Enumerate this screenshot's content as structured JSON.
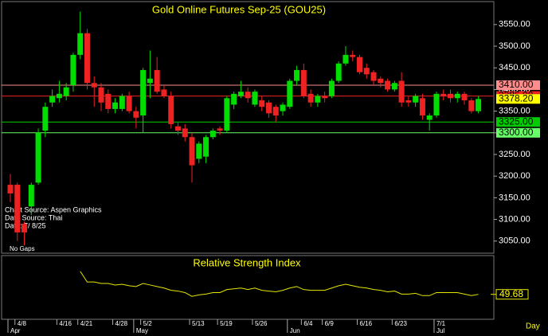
{
  "chart_data": {
    "type": "candlestick",
    "title": "Gold Online Futures Sep-25 (GOU25)",
    "subtitle": "Relative Strength Index",
    "notes": [
      "Chart Source: Aspen Graphics",
      "Data Source: Thai",
      "Date:  7/ 8/25"
    ],
    "footer": "No Gaps",
    "period_label": "Day",
    "categories": [
      null,
      "4/8",
      null,
      null,
      null,
      null,
      null,
      "4/16",
      null,
      null,
      "4/21",
      null,
      null,
      null,
      null,
      "4/28",
      null,
      null,
      null,
      "5/2",
      null,
      null,
      null,
      null,
      null,
      null,
      "5/13",
      null,
      null,
      null,
      "5/19",
      null,
      null,
      null,
      null,
      "5/26",
      null,
      null,
      null,
      null,
      null,
      null,
      "6/4",
      null,
      null,
      "6/9",
      null,
      null,
      null,
      null,
      "6/16",
      null,
      null,
      null,
      null,
      "6/23",
      null,
      null,
      null,
      null,
      null,
      "7/1",
      null,
      null,
      null,
      null,
      null,
      null
    ],
    "months": [
      "Apr",
      null,
      null,
      null,
      null,
      null,
      null,
      null,
      null,
      null,
      null,
      null,
      null,
      null,
      null,
      null,
      null,
      null,
      "May",
      null,
      null,
      null,
      null,
      null,
      null,
      null,
      null,
      null,
      null,
      null,
      null,
      null,
      null,
      null,
      null,
      null,
      null,
      null,
      null,
      null,
      "Jun",
      null,
      null,
      null,
      null,
      null,
      null,
      null,
      null,
      null,
      null,
      null,
      null,
      null,
      null,
      null,
      null,
      null,
      null,
      null,
      null,
      "Jul",
      null,
      null,
      null,
      null,
      null,
      null
    ],
    "open": [
      3180,
      3180,
      3090,
      3130,
      3185,
      3305,
      3370,
      3380,
      3385,
      3410,
      3480,
      3530,
      3415,
      3405,
      3390,
      3355,
      3355,
      3385,
      3350,
      3340,
      3415,
      3445,
      3400,
      3385,
      3315,
      3310,
      3290,
      3240,
      3245,
      3290,
      3310,
      3305,
      3365,
      3385,
      3395,
      3365,
      3375,
      3370,
      3360,
      3350,
      3360,
      3420,
      3445,
      3390,
      3370,
      3385,
      3385,
      3420,
      3460,
      3480,
      3475,
      3450,
      3440,
      3425,
      3420,
      3400,
      3420,
      3375,
      3370,
      3380,
      3330,
      3340,
      3390,
      3390,
      3380,
      3390,
      3375,
      3350
    ],
    "high": [
      3205,
      3185,
      3095,
      3185,
      3310,
      3370,
      3400,
      3420,
      3415,
      3485,
      3580,
      3540,
      3430,
      3415,
      3400,
      3380,
      3390,
      3395,
      3360,
      3450,
      3490,
      3475,
      3410,
      3395,
      3325,
      3320,
      3300,
      3280,
      3295,
      3310,
      3315,
      3385,
      3395,
      3420,
      3405,
      3400,
      3385,
      3375,
      3365,
      3370,
      3425,
      3455,
      3460,
      3400,
      3390,
      3395,
      3425,
      3465,
      3500,
      3490,
      3480,
      3460,
      3445,
      3430,
      3425,
      3420,
      3440,
      3385,
      3390,
      3390,
      3345,
      3395,
      3400,
      3400,
      3395,
      3395,
      3380,
      3385
    ],
    "low": [
      3140,
      3050,
      3040,
      3110,
      3180,
      3290,
      3360,
      3370,
      3375,
      3395,
      3470,
      3400,
      3360,
      3350,
      3345,
      3345,
      3350,
      3345,
      3310,
      3300,
      3380,
      3390,
      3380,
      3310,
      3295,
      3280,
      3185,
      3230,
      3230,
      3285,
      3295,
      3300,
      3355,
      3380,
      3370,
      3360,
      3350,
      3335,
      3325,
      3340,
      3355,
      3410,
      3380,
      3360,
      3360,
      3370,
      3380,
      3415,
      3455,
      3465,
      3435,
      3425,
      3410,
      3405,
      3395,
      3395,
      3360,
      3360,
      3360,
      3330,
      3305,
      3335,
      3375,
      3370,
      3370,
      3365,
      3345,
      3345
    ],
    "close": [
      3160,
      3070,
      3070,
      3180,
      3300,
      3360,
      3385,
      3390,
      3405,
      3480,
      3530,
      3415,
      3405,
      3370,
      3355,
      3370,
      3385,
      3350,
      3335,
      3445,
      3425,
      3395,
      3385,
      3320,
      3305,
      3290,
      3225,
      3275,
      3290,
      3305,
      3305,
      3380,
      3390,
      3395,
      3380,
      3395,
      3360,
      3345,
      3340,
      3365,
      3420,
      3445,
      3385,
      3370,
      3385,
      3380,
      3420,
      3460,
      3480,
      3475,
      3440,
      3435,
      3420,
      3415,
      3400,
      3415,
      3370,
      3370,
      3385,
      3340,
      3340,
      3390,
      3385,
      3380,
      3390,
      3375,
      3350,
      3378.2
    ],
    "last_label": "3378.20",
    "up_color": "#00dd00",
    "down_color": "#ee2222",
    "levels": [
      {
        "value": 3410,
        "label": "3410.00",
        "color": "#ff8c8c"
      },
      {
        "value": 3385,
        "label": "3385.00",
        "color": "#ee2222"
      },
      {
        "value": 3325,
        "label": "3325.00",
        "color": "#00cc00"
      },
      {
        "value": 3300,
        "label": "3300.00",
        "color": "#66ff66"
      }
    ],
    "ylim": [
      3022,
      3603
    ],
    "yticks": [
      {
        "value": 3050,
        "label": "3050.00"
      },
      {
        "value": 3100,
        "label": "3100.00"
      },
      {
        "value": 3150,
        "label": "3150.00"
      },
      {
        "value": 3200,
        "label": "3200.00"
      },
      {
        "value": 3250,
        "label": "3250.00"
      },
      {
        "value": 3300,
        "label": "3300.00"
      },
      {
        "value": 3350,
        "label": "3350.00"
      },
      {
        "value": 3400,
        "label": "3400.00"
      },
      {
        "value": 3450,
        "label": "3450.00"
      },
      {
        "value": 3500,
        "label": "3500.00"
      },
      {
        "value": 3550,
        "label": "3550.00"
      }
    ],
    "rsi": {
      "name": "Relative Strength Index",
      "color": "#e6e600",
      "values": [
        null,
        null,
        null,
        null,
        null,
        null,
        null,
        null,
        null,
        null,
        80,
        66,
        66,
        64,
        64,
        62,
        63,
        61,
        60,
        64,
        62,
        60,
        58,
        55,
        54,
        52,
        47,
        49,
        50,
        52,
        52,
        56,
        57,
        58,
        56,
        58,
        55,
        54,
        53,
        55,
        58,
        60,
        56,
        55,
        55,
        55,
        58,
        61,
        63,
        61,
        59,
        58,
        56,
        55,
        53,
        54,
        50,
        50,
        51,
        48,
        48,
        52,
        52,
        52,
        52,
        50,
        48,
        49.68
      ],
      "ylim": [
        20,
        85
      ]
    }
  }
}
